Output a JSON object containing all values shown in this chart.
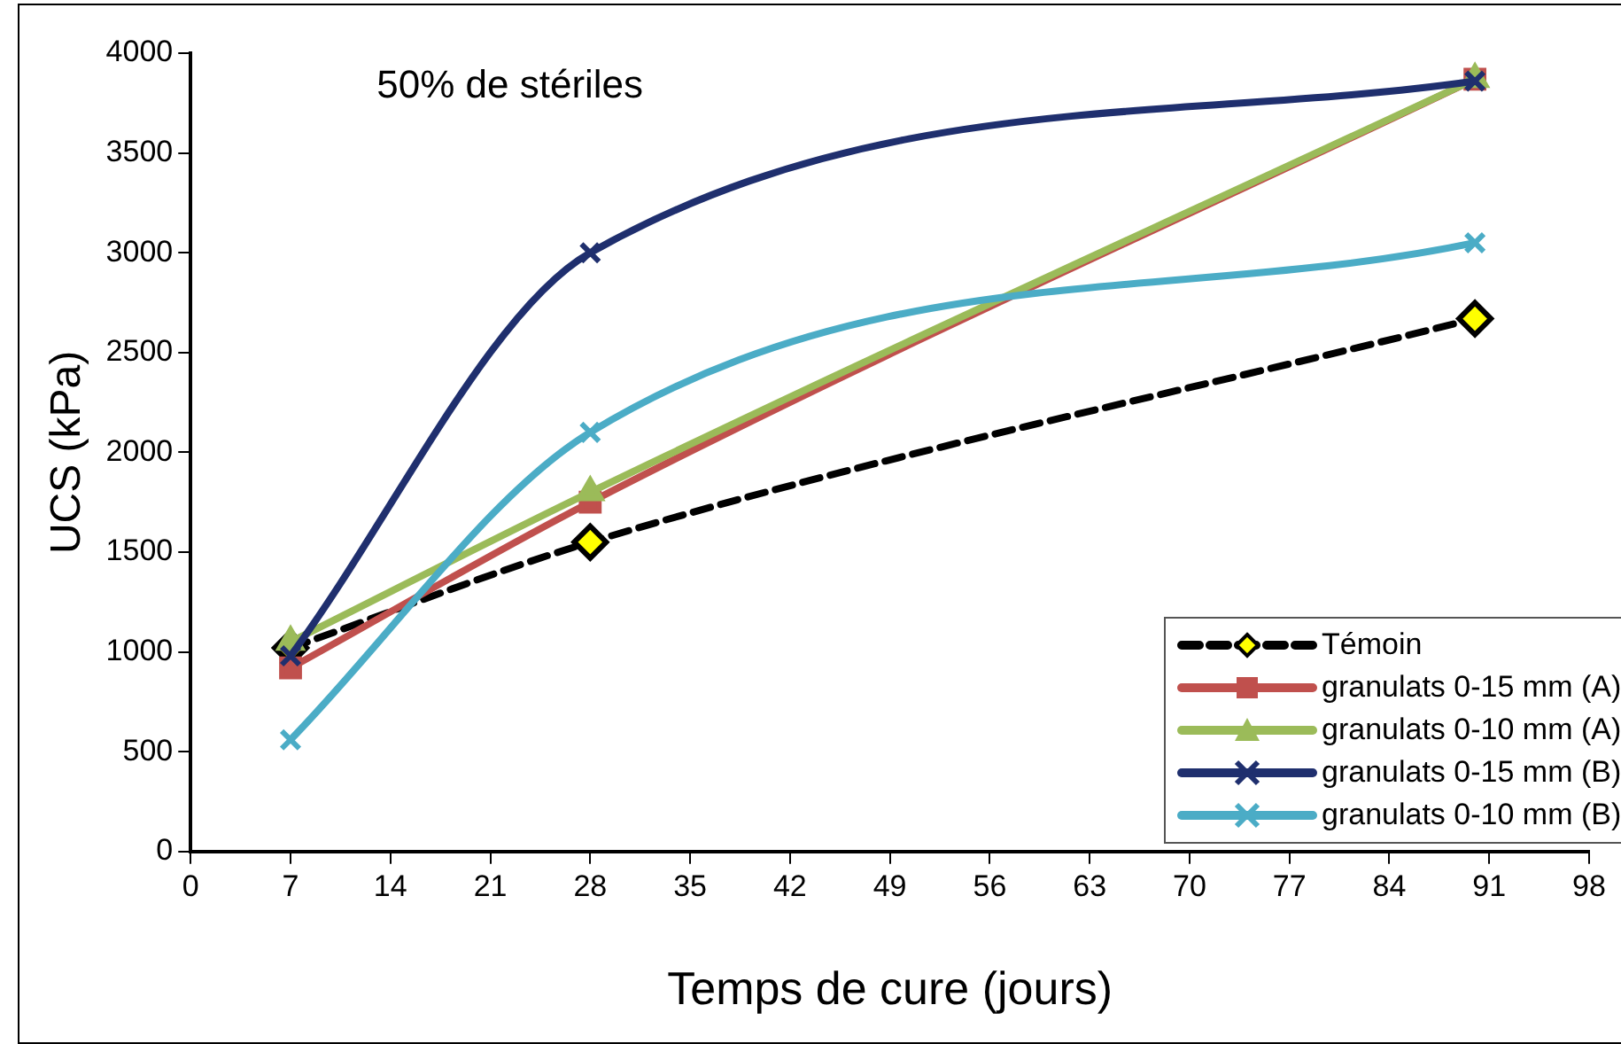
{
  "chart_data": {
    "type": "line",
    "title": "50% de stériles",
    "xlabel": "Temps de cure (jours)",
    "ylabel": "UCS (kPa)",
    "x": [
      7,
      28,
      90
    ],
    "xlim": [
      0,
      98
    ],
    "xticks": [
      0,
      7,
      14,
      21,
      28,
      35,
      42,
      49,
      56,
      63,
      70,
      77,
      84,
      91,
      98
    ],
    "ylim": [
      0,
      4000
    ],
    "yticks": [
      0,
      500,
      1000,
      1500,
      2000,
      2500,
      3000,
      3500,
      4000
    ],
    "grid": false,
    "legend": "bottom right",
    "series": [
      {
        "name": "Témoin",
        "color": "#000000",
        "values": [
          1020,
          1550,
          2670
        ],
        "marker": "diamond",
        "line_style": "dashed"
      },
      {
        "name": "granulats 0-15 mm (A)",
        "color": "#c0504d",
        "values": [
          920,
          1750,
          3870
        ],
        "marker": "square",
        "line_style": "solid"
      },
      {
        "name": "granulats 0-10 mm (A)",
        "color": "#9bbb59",
        "values": [
          1050,
          1800,
          3870
        ],
        "marker": "triangle",
        "line_style": "solid"
      },
      {
        "name": "granulats 0-15 mm (B)",
        "color": "#1f2f6e",
        "values": [
          980,
          3000,
          3860
        ],
        "marker": "cross",
        "line_style": "solid"
      },
      {
        "name": "granulats 0-10 mm (B)",
        "color": "#4bacc6",
        "values": [
          560,
          2100,
          3050
        ],
        "marker": "cross",
        "line_style": "solid"
      }
    ]
  }
}
